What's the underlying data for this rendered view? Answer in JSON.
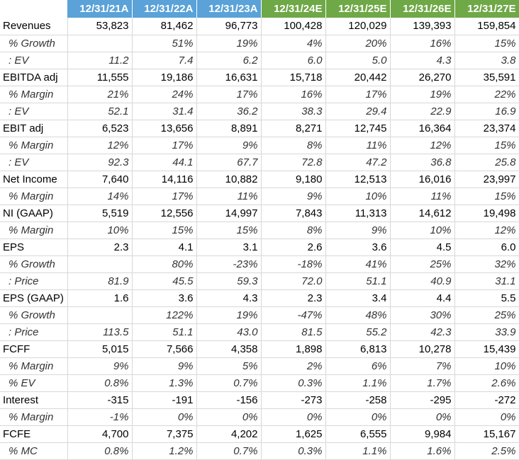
{
  "columns": [
    "12/31/21A",
    "12/31/22A",
    "12/31/23A",
    "12/31/24E",
    "12/31/25E",
    "12/31/26E",
    "12/31/27E"
  ],
  "header_colors": {
    "actual": "#5aa2d8",
    "estimate": "#6fa846"
  },
  "rows": [
    {
      "label": "Revenues",
      "type": "main",
      "values": [
        "53,823",
        "81,462",
        "96,773",
        "100,428",
        "120,029",
        "139,393",
        "159,854"
      ]
    },
    {
      "label": "% Growth",
      "type": "sub",
      "values": [
        "",
        "51%",
        "19%",
        "4%",
        "20%",
        "16%",
        "15%"
      ]
    },
    {
      "label": ": EV",
      "type": "sub",
      "values": [
        "11.2",
        "7.4",
        "6.2",
        "6.0",
        "5.0",
        "4.3",
        "3.8"
      ]
    },
    {
      "label": "EBITDA adj",
      "type": "main",
      "values": [
        "11,555",
        "19,186",
        "16,631",
        "15,718",
        "20,442",
        "26,270",
        "35,591"
      ]
    },
    {
      "label": "% Margin",
      "type": "sub",
      "values": [
        "21%",
        "24%",
        "17%",
        "16%",
        "17%",
        "19%",
        "22%"
      ]
    },
    {
      "label": ": EV",
      "type": "sub",
      "values": [
        "52.1",
        "31.4",
        "36.2",
        "38.3",
        "29.4",
        "22.9",
        "16.9"
      ]
    },
    {
      "label": "EBIT adj",
      "type": "main",
      "values": [
        "6,523",
        "13,656",
        "8,891",
        "8,271",
        "12,745",
        "16,364",
        "23,374"
      ]
    },
    {
      "label": "% Margin",
      "type": "sub",
      "values": [
        "12%",
        "17%",
        "9%",
        "8%",
        "11%",
        "12%",
        "15%"
      ]
    },
    {
      "label": ": EV",
      "type": "sub",
      "values": [
        "92.3",
        "44.1",
        "67.7",
        "72.8",
        "47.2",
        "36.8",
        "25.8"
      ]
    },
    {
      "label": "Net Income",
      "type": "main",
      "values": [
        "7,640",
        "14,116",
        "10,882",
        "9,180",
        "12,513",
        "16,016",
        "23,997"
      ]
    },
    {
      "label": "% Margin",
      "type": "sub",
      "values": [
        "14%",
        "17%",
        "11%",
        "9%",
        "10%",
        "11%",
        "15%"
      ]
    },
    {
      "label": "NI (GAAP)",
      "type": "main",
      "values": [
        "5,519",
        "12,556",
        "14,997",
        "7,843",
        "11,313",
        "14,612",
        "19,498"
      ]
    },
    {
      "label": "% Margin",
      "type": "sub",
      "values": [
        "10%",
        "15%",
        "15%",
        "8%",
        "9%",
        "10%",
        "12%"
      ]
    },
    {
      "label": "EPS",
      "type": "main",
      "values": [
        "2.3",
        "4.1",
        "3.1",
        "2.6",
        "3.6",
        "4.5",
        "6.0"
      ]
    },
    {
      "label": "% Growth",
      "type": "sub",
      "values": [
        "",
        "80%",
        "-23%",
        "-18%",
        "41%",
        "25%",
        "32%"
      ]
    },
    {
      "label": ": Price",
      "type": "sub",
      "values": [
        "81.9",
        "45.5",
        "59.3",
        "72.0",
        "51.1",
        "40.9",
        "31.1"
      ]
    },
    {
      "label": "EPS (GAAP)",
      "type": "main",
      "values": [
        "1.6",
        "3.6",
        "4.3",
        "2.3",
        "3.4",
        "4.4",
        "5.5"
      ]
    },
    {
      "label": "% Growth",
      "type": "sub",
      "values": [
        "",
        "122%",
        "19%",
        "-47%",
        "48%",
        "30%",
        "25%"
      ]
    },
    {
      "label": ": Price",
      "type": "sub",
      "values": [
        "113.5",
        "51.1",
        "43.0",
        "81.5",
        "55.2",
        "42.3",
        "33.9"
      ]
    },
    {
      "label": "FCFF",
      "type": "main",
      "values": [
        "5,015",
        "7,566",
        "4,358",
        "1,898",
        "6,813",
        "10,278",
        "15,439"
      ]
    },
    {
      "label": "% Margin",
      "type": "sub",
      "values": [
        "9%",
        "9%",
        "5%",
        "2%",
        "6%",
        "7%",
        "10%"
      ]
    },
    {
      "label": "% EV",
      "type": "sub",
      "values": [
        "0.8%",
        "1.3%",
        "0.7%",
        "0.3%",
        "1.1%",
        "1.7%",
        "2.6%"
      ]
    },
    {
      "label": "Interest",
      "type": "main",
      "values": [
        "-315",
        "-191",
        "-156",
        "-273",
        "-258",
        "-295",
        "-272"
      ]
    },
    {
      "label": "% Margin",
      "type": "sub",
      "values": [
        "-1%",
        "0%",
        "0%",
        "0%",
        "0%",
        "0%",
        "0%"
      ]
    },
    {
      "label": "FCFE",
      "type": "main",
      "values": [
        "4,700",
        "7,375",
        "4,202",
        "1,625",
        "6,555",
        "9,984",
        "15,167"
      ]
    },
    {
      "label": "% MC",
      "type": "sub",
      "values": [
        "0.8%",
        "1.2%",
        "0.7%",
        "0.3%",
        "1.1%",
        "1.6%",
        "2.5%"
      ]
    }
  ]
}
